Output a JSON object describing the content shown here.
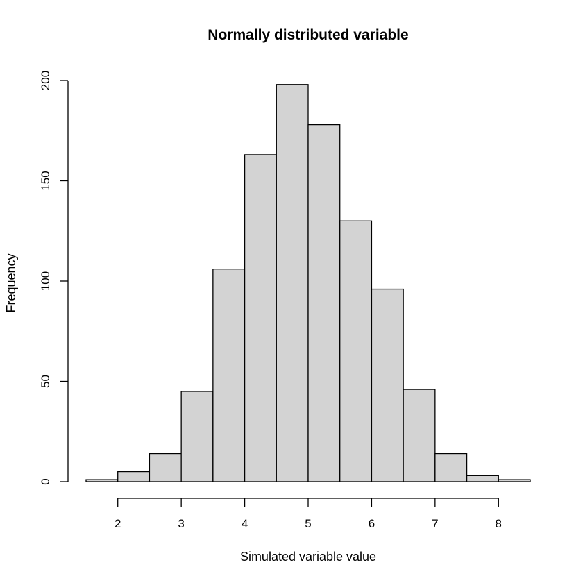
{
  "chart_data": {
    "type": "bar",
    "title": "Normally distributed variable",
    "xlabel": "Simulated variable value",
    "ylabel": "Frequency",
    "bin_edges": [
      1.5,
      2.0,
      2.5,
      3.0,
      3.5,
      4.0,
      4.5,
      5.0,
      5.5,
      6.0,
      6.5,
      7.0,
      7.5,
      8.0,
      8.5
    ],
    "values": [
      1,
      5,
      14,
      45,
      106,
      163,
      198,
      178,
      130,
      96,
      46,
      14,
      3,
      1
    ],
    "xlim": [
      1.5,
      8.5
    ],
    "ylim": [
      0,
      200
    ],
    "x_ticks": [
      2,
      3,
      4,
      5,
      6,
      7,
      8
    ],
    "y_ticks": [
      0,
      50,
      100,
      150,
      200
    ],
    "bar_color": "#d3d3d3",
    "edge_color": "#000000",
    "grid": false
  }
}
